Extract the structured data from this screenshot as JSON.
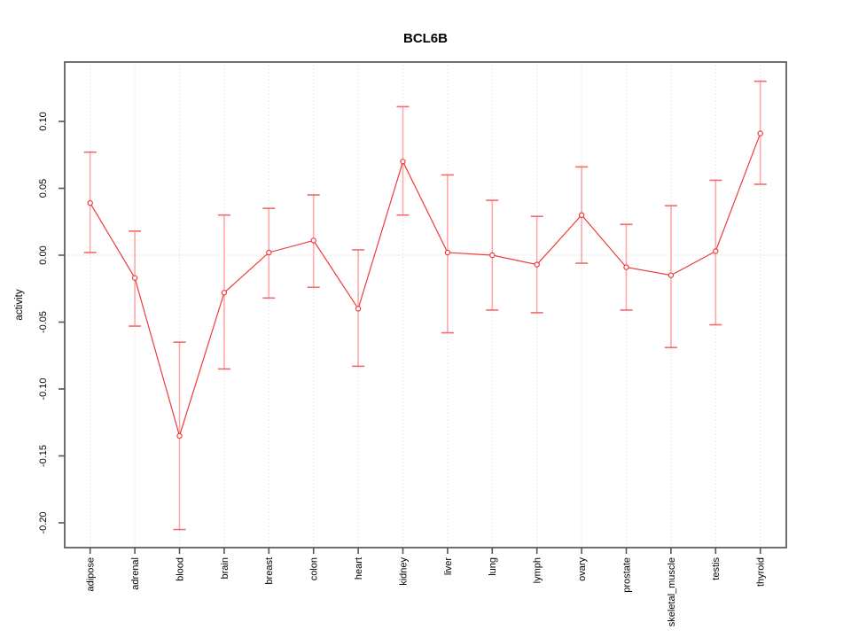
{
  "title": "BCL6B",
  "colors": {
    "series_line": "#ee3b3b",
    "point_stroke": "#ee3b3b",
    "error_bar": "#ffa8a8",
    "error_cap": "#f26a6a",
    "grid": "#d4d4d4",
    "zero_line": "#cfcfcf",
    "box": "#6f6f6f",
    "tick": "#555555",
    "text": "#000000",
    "background": "#ffffff"
  },
  "chart_data": {
    "type": "line",
    "title": "BCL6B",
    "xlabel": "",
    "ylabel": "activity",
    "ylim": [
      -0.22,
      0.145
    ],
    "yticks": [
      0.1,
      0.05,
      0.0,
      -0.05,
      -0.1,
      -0.15,
      -0.2
    ],
    "ytick_labels": [
      "0.10",
      "0.05",
      "0.00",
      "-0.05",
      "-0.10",
      "-0.15",
      "-0.20"
    ],
    "grid": "vertical dotted line at each category; horizontal dotted line at y=0 only",
    "legend_position": "none",
    "categories": [
      "adipose",
      "adrenal",
      "blood",
      "brain",
      "breast",
      "colon",
      "heart",
      "kidney",
      "liver",
      "lung",
      "lymph",
      "ovary",
      "prostate",
      "skeletal_muscle",
      "testis",
      "thyroid"
    ],
    "series": [
      {
        "name": "activity",
        "marker": "open-circle",
        "values": [
          0.039,
          -0.017,
          -0.135,
          -0.028,
          0.002,
          0.011,
          -0.04,
          0.07,
          0.002,
          0.0,
          -0.007,
          0.03,
          -0.009,
          -0.015,
          0.003,
          0.091
        ],
        "lower": [
          0.002,
          -0.053,
          -0.205,
          -0.085,
          -0.032,
          -0.024,
          -0.083,
          0.03,
          -0.058,
          -0.041,
          -0.043,
          -0.006,
          -0.041,
          -0.069,
          -0.052,
          0.053
        ],
        "upper": [
          0.077,
          0.018,
          -0.065,
          0.03,
          0.035,
          0.045,
          0.004,
          0.111,
          0.06,
          0.041,
          0.029,
          0.066,
          0.023,
          0.037,
          0.056,
          0.13
        ]
      }
    ]
  }
}
